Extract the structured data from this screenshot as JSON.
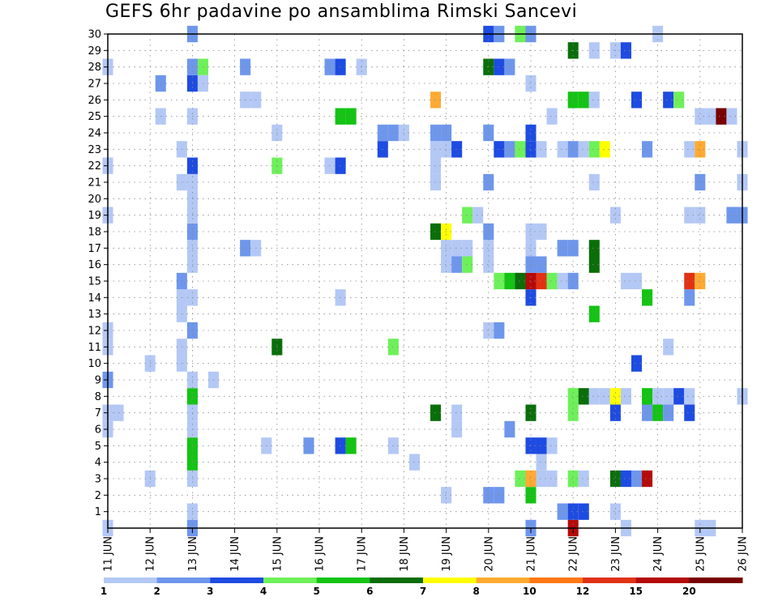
{
  "chart_data": {
    "type": "heatmap",
    "title": "GEFS 6hr padavine po ansamblima Rimski Sancevi",
    "xlabel": "",
    "ylabel": "",
    "x_tick_labels": [
      "11 JUN",
      "12 JUN",
      "13 JUN",
      "14 JUN",
      "15 JUN",
      "16 JUN",
      "17 JUN",
      "18 JUN",
      "19 JUN",
      "20 JUN",
      "21 JUN",
      "22 JUN",
      "23 JUN",
      "24 JUN",
      "25 JUN",
      "26 JUN"
    ],
    "y_tick_labels": [
      "1",
      "2",
      "3",
      "4",
      "5",
      "6",
      "7",
      "8",
      "9",
      "10",
      "11",
      "12",
      "13",
      "14",
      "15",
      "16",
      "17",
      "18",
      "19",
      "20",
      "21",
      "22",
      "23",
      "24",
      "25",
      "26",
      "27",
      "28",
      "29",
      "30"
    ],
    "x_range_days": [
      11,
      26
    ],
    "y_range": [
      0,
      30
    ],
    "grid": true,
    "colorbar": {
      "labels": [
        "1",
        "2",
        "3",
        "4",
        "5",
        "6",
        "7",
        "8",
        "10",
        "12",
        "15",
        "20"
      ],
      "colors": [
        "#b4c8f5",
        "#6e96eb",
        "#1e4be1",
        "#6ef05a",
        "#14c314",
        "#0a6e0a",
        "#ffff00",
        "#ffaa32",
        "#ff7814",
        "#e13214",
        "#b40a0a",
        "#780000"
      ]
    },
    "cells": [
      [
        11.0,
        0,
        0
      ],
      [
        13.0,
        0,
        1
      ],
      [
        21.0,
        0,
        1
      ],
      [
        22.0,
        0,
        10
      ],
      [
        23.25,
        0,
        0
      ],
      [
        25.0,
        0,
        0
      ],
      [
        25.25,
        0,
        0
      ],
      [
        13.0,
        1,
        0
      ],
      [
        21.75,
        1,
        1
      ],
      [
        22.0,
        1,
        2
      ],
      [
        22.25,
        1,
        2
      ],
      [
        23.0,
        1,
        0
      ],
      [
        19.0,
        2,
        0
      ],
      [
        20.0,
        2,
        1
      ],
      [
        20.25,
        2,
        1
      ],
      [
        21.0,
        2,
        4
      ],
      [
        12.0,
        3,
        0
      ],
      [
        13.0,
        3,
        0
      ],
      [
        20.75,
        3,
        3
      ],
      [
        21.0,
        3,
        7
      ],
      [
        21.25,
        3,
        0
      ],
      [
        21.5,
        3,
        0
      ],
      [
        22.0,
        3,
        3
      ],
      [
        22.25,
        3,
        0
      ],
      [
        23.0,
        3,
        5
      ],
      [
        23.25,
        3,
        2
      ],
      [
        23.5,
        3,
        1
      ],
      [
        23.75,
        3,
        10
      ],
      [
        13.0,
        4,
        4
      ],
      [
        18.25,
        4,
        0
      ],
      [
        21.25,
        4,
        0
      ],
      [
        13.0,
        5,
        4
      ],
      [
        14.75,
        5,
        0
      ],
      [
        15.75,
        5,
        1
      ],
      [
        16.5,
        5,
        2
      ],
      [
        16.75,
        5,
        4
      ],
      [
        17.75,
        5,
        0
      ],
      [
        21.0,
        5,
        2
      ],
      [
        21.25,
        5,
        2
      ],
      [
        21.5,
        5,
        0
      ],
      [
        11.0,
        6,
        0
      ],
      [
        13.0,
        6,
        0
      ],
      [
        19.25,
        6,
        0
      ],
      [
        20.5,
        6,
        1
      ],
      [
        11.0,
        7,
        0
      ],
      [
        11.25,
        7,
        0
      ],
      [
        13.0,
        7,
        0
      ],
      [
        18.75,
        7,
        5
      ],
      [
        19.25,
        7,
        0
      ],
      [
        21.0,
        7,
        5
      ],
      [
        22.0,
        7,
        3
      ],
      [
        23.0,
        7,
        2
      ],
      [
        23.75,
        7,
        1
      ],
      [
        24.0,
        7,
        4
      ],
      [
        24.25,
        7,
        1
      ],
      [
        24.75,
        7,
        2
      ],
      [
        13.0,
        8,
        4
      ],
      [
        22.0,
        8,
        3
      ],
      [
        22.25,
        8,
        5
      ],
      [
        22.5,
        8,
        0
      ],
      [
        22.75,
        8,
        0
      ],
      [
        23.0,
        8,
        6
      ],
      [
        23.25,
        8,
        0
      ],
      [
        23.75,
        8,
        4
      ],
      [
        24.0,
        8,
        0
      ],
      [
        24.25,
        8,
        0
      ],
      [
        24.5,
        8,
        2
      ],
      [
        24.75,
        8,
        0
      ],
      [
        26.0,
        8,
        0
      ],
      [
        11.0,
        9,
        1
      ],
      [
        13.0,
        9,
        0
      ],
      [
        13.5,
        9,
        0
      ],
      [
        12.0,
        10,
        0
      ],
      [
        12.75,
        10,
        0
      ],
      [
        23.5,
        10,
        2
      ],
      [
        11.0,
        11,
        0
      ],
      [
        12.75,
        11,
        0
      ],
      [
        15.0,
        11,
        5
      ],
      [
        17.75,
        11,
        3
      ],
      [
        24.25,
        11,
        0
      ],
      [
        11.0,
        12,
        0
      ],
      [
        13.0,
        12,
        1
      ],
      [
        20.0,
        12,
        0
      ],
      [
        20.25,
        12,
        1
      ],
      [
        12.75,
        13,
        0
      ],
      [
        22.5,
        13,
        4
      ],
      [
        12.75,
        14,
        0
      ],
      [
        13.0,
        14,
        0
      ],
      [
        16.5,
        14,
        0
      ],
      [
        21.0,
        14,
        2
      ],
      [
        23.75,
        14,
        4
      ],
      [
        24.75,
        14,
        1
      ],
      [
        12.75,
        15,
        1
      ],
      [
        20.25,
        15,
        3
      ],
      [
        20.5,
        15,
        4
      ],
      [
        20.75,
        15,
        5
      ],
      [
        21.0,
        15,
        10
      ],
      [
        21.25,
        15,
        9
      ],
      [
        21.5,
        15,
        3
      ],
      [
        21.75,
        15,
        0
      ],
      [
        22.0,
        15,
        1
      ],
      [
        23.25,
        15,
        0
      ],
      [
        23.5,
        15,
        0
      ],
      [
        24.75,
        15,
        9
      ],
      [
        25.0,
        15,
        7
      ],
      [
        13.0,
        16,
        0
      ],
      [
        19.0,
        16,
        0
      ],
      [
        19.25,
        16,
        1
      ],
      [
        19.5,
        16,
        3
      ],
      [
        20.0,
        16,
        0
      ],
      [
        21.0,
        16,
        1
      ],
      [
        21.25,
        16,
        1
      ],
      [
        22.5,
        16,
        5
      ],
      [
        13.0,
        17,
        0
      ],
      [
        14.25,
        17,
        1
      ],
      [
        14.5,
        17,
        0
      ],
      [
        19.0,
        17,
        0
      ],
      [
        19.25,
        17,
        0
      ],
      [
        19.5,
        17,
        0
      ],
      [
        20.0,
        17,
        0
      ],
      [
        21.0,
        17,
        0
      ],
      [
        21.75,
        17,
        1
      ],
      [
        22.0,
        17,
        1
      ],
      [
        22.5,
        17,
        5
      ],
      [
        13.0,
        18,
        1
      ],
      [
        18.75,
        18,
        5
      ],
      [
        19.0,
        18,
        6
      ],
      [
        20.0,
        18,
        1
      ],
      [
        21.0,
        18,
        0
      ],
      [
        21.25,
        18,
        0
      ],
      [
        11.0,
        19,
        0
      ],
      [
        13.0,
        19,
        0
      ],
      [
        19.5,
        19,
        3
      ],
      [
        19.75,
        19,
        0
      ],
      [
        23.0,
        19,
        0
      ],
      [
        24.75,
        19,
        0
      ],
      [
        25.0,
        19,
        0
      ],
      [
        25.75,
        19,
        1
      ],
      [
        26.0,
        19,
        1
      ],
      [
        13.0,
        20,
        0
      ],
      [
        12.75,
        21,
        0
      ],
      [
        13.0,
        21,
        0
      ],
      [
        18.75,
        21,
        0
      ],
      [
        20.0,
        21,
        1
      ],
      [
        22.5,
        21,
        0
      ],
      [
        25.0,
        21,
        1
      ],
      [
        26.0,
        21,
        0
      ],
      [
        11.0,
        22,
        0
      ],
      [
        13.0,
        22,
        2
      ],
      [
        15.0,
        22,
        3
      ],
      [
        16.25,
        22,
        0
      ],
      [
        16.5,
        22,
        2
      ],
      [
        18.75,
        22,
        0
      ],
      [
        12.75,
        23,
        0
      ],
      [
        17.5,
        23,
        2
      ],
      [
        18.75,
        23,
        0
      ],
      [
        19.0,
        23,
        0
      ],
      [
        19.25,
        23,
        2
      ],
      [
        20.25,
        23,
        2
      ],
      [
        20.5,
        23,
        1
      ],
      [
        20.75,
        23,
        3
      ],
      [
        21.0,
        23,
        2
      ],
      [
        21.25,
        23,
        0
      ],
      [
        21.75,
        23,
        0
      ],
      [
        22.0,
        23,
        1
      ],
      [
        22.25,
        23,
        0
      ],
      [
        22.5,
        23,
        3
      ],
      [
        22.75,
        23,
        6
      ],
      [
        23.75,
        23,
        1
      ],
      [
        24.75,
        23,
        0
      ],
      [
        25.0,
        23,
        7
      ],
      [
        26.0,
        23,
        0
      ],
      [
        15.0,
        24,
        0
      ],
      [
        17.5,
        24,
        1
      ],
      [
        17.75,
        24,
        1
      ],
      [
        18.0,
        24,
        0
      ],
      [
        18.75,
        24,
        1
      ],
      [
        19.0,
        24,
        1
      ],
      [
        20.0,
        24,
        1
      ],
      [
        21.0,
        24,
        2
      ],
      [
        12.25,
        25,
        0
      ],
      [
        13.0,
        25,
        0
      ],
      [
        16.5,
        25,
        4
      ],
      [
        16.75,
        25,
        4
      ],
      [
        21.5,
        25,
        0
      ],
      [
        25.0,
        25,
        0
      ],
      [
        25.25,
        25,
        0
      ],
      [
        25.5,
        25,
        11
      ],
      [
        25.75,
        25,
        0
      ],
      [
        14.25,
        26,
        0
      ],
      [
        14.5,
        26,
        0
      ],
      [
        18.75,
        26,
        7
      ],
      [
        22.0,
        26,
        4
      ],
      [
        22.25,
        26,
        4
      ],
      [
        22.5,
        26,
        0
      ],
      [
        23.5,
        26,
        2
      ],
      [
        24.25,
        26,
        2
      ],
      [
        24.5,
        26,
        3
      ],
      [
        12.25,
        27,
        1
      ],
      [
        13.0,
        27,
        2
      ],
      [
        13.25,
        27,
        0
      ],
      [
        21.0,
        27,
        0
      ],
      [
        11.0,
        28,
        0
      ],
      [
        13.0,
        28,
        1
      ],
      [
        13.25,
        28,
        3
      ],
      [
        14.25,
        28,
        1
      ],
      [
        16.25,
        28,
        1
      ],
      [
        16.5,
        28,
        2
      ],
      [
        17.0,
        28,
        0
      ],
      [
        20.0,
        28,
        5
      ],
      [
        20.25,
        28,
        2
      ],
      [
        20.5,
        28,
        1
      ],
      [
        22.0,
        29,
        5
      ],
      [
        22.5,
        29,
        0
      ],
      [
        23.0,
        29,
        0
      ],
      [
        23.25,
        29,
        2
      ],
      [
        13.0,
        30,
        1
      ],
      [
        20.0,
        30,
        2
      ],
      [
        20.25,
        30,
        1
      ],
      [
        20.75,
        30,
        3
      ],
      [
        21.0,
        30,
        1
      ],
      [
        24.0,
        30,
        0
      ]
    ]
  }
}
